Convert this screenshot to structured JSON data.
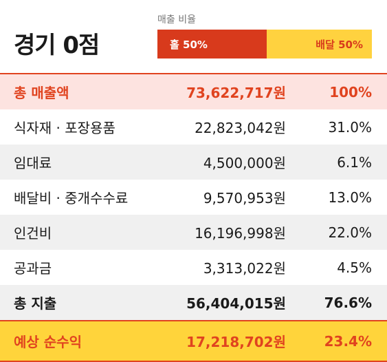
{
  "header": {
    "title": "경기 0점",
    "ratio": {
      "label": "매출 비율",
      "segments": [
        {
          "label": "홀 50%",
          "value": 50
        },
        {
          "label": "배달 50%",
          "value": 50
        }
      ]
    }
  },
  "table": {
    "rows": [
      [
        "총 매출액",
        "73,622,717원",
        "100%"
      ],
      [
        "식자재 · 포장용품",
        "22,823,042원",
        "31.0%"
      ],
      [
        "임대료",
        "4,500,000원",
        "6.1%"
      ],
      [
        "배달비 · 중개수수료",
        "9,570,953원",
        "13.0%"
      ],
      [
        "인건비",
        "16,196,998원",
        "22.0%"
      ],
      [
        "공과금",
        "3,313,022원",
        "4.5%"
      ],
      [
        "총 지출",
        "56,404,015원",
        "76.6%"
      ],
      [
        "예상 순수익",
        "17,218,702원",
        "23.4%"
      ]
    ]
  }
}
